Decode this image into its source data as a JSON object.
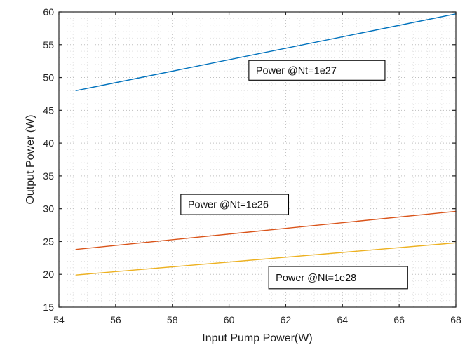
{
  "chart_data": {
    "type": "line",
    "title": "",
    "xlabel": "Input Pump Power(W)",
    "ylabel": "Output Power (W)",
    "xlim": [
      54,
      68
    ],
    "ylim": [
      15,
      60
    ],
    "xticks": [
      "54",
      "56",
      "58",
      "60",
      "62",
      "64",
      "66",
      "68"
    ],
    "xtick_values": [
      54,
      56,
      58,
      60,
      62,
      64,
      66,
      68
    ],
    "yticks": [
      "15",
      "20",
      "25",
      "30",
      "35",
      "40",
      "45",
      "50",
      "55",
      "60"
    ],
    "ytick_values": [
      15,
      20,
      25,
      30,
      35,
      40,
      45,
      50,
      55,
      60
    ],
    "grid": {
      "style": "dotted",
      "major_on": true,
      "minor_on": true,
      "x_minor_step": 0.5,
      "y_minor_step": 1,
      "major_color": "#bfbfbf",
      "minor_color": "#e4e4e4"
    },
    "axis_color": "#262626",
    "legend_position": "none",
    "series": [
      {
        "name": "Power @Nt=1e27",
        "color": "#0072BD",
        "x": [
          54.6,
          68
        ],
        "y": [
          48.0,
          59.7
        ]
      },
      {
        "name": "Power @Nt=1e26",
        "color": "#D95319",
        "x": [
          54.6,
          68
        ],
        "y": [
          23.8,
          29.6
        ]
      },
      {
        "name": "Power @Nt=1e28",
        "color": "#EDB120",
        "x": [
          54.6,
          68
        ],
        "y": [
          19.9,
          24.8
        ]
      }
    ],
    "annotations": [
      {
        "label": "Power @Nt=1e27",
        "x1": 60.7,
        "y1": 52.6,
        "x2": 65.5,
        "y2": 49.6
      },
      {
        "label": "Power @Nt=1e26",
        "x1": 58.3,
        "y1": 32.2,
        "x2": 62.1,
        "y2": 29.1
      },
      {
        "label": "Power @Nt=1e28",
        "x1": 61.4,
        "y1": 21.2,
        "x2": 66.3,
        "y2": 17.8
      }
    ]
  }
}
